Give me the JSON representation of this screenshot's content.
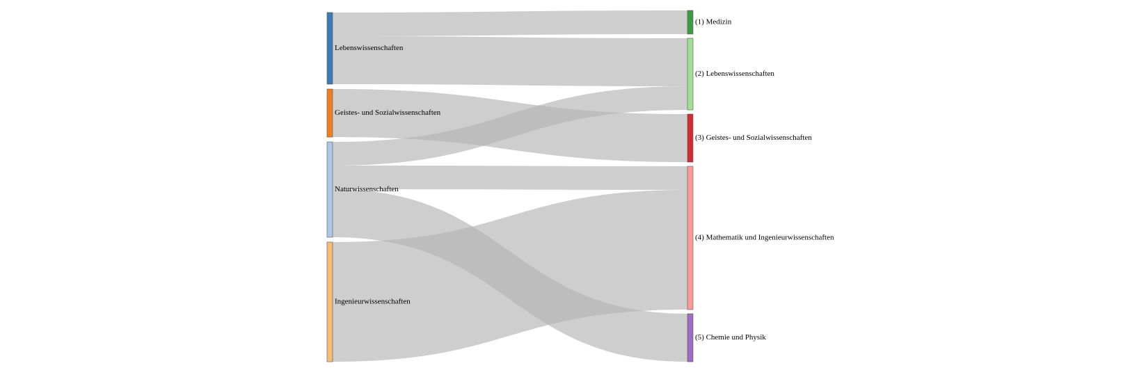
{
  "diagram": {
    "type": "sankey",
    "source_nodes": [
      {
        "id": "leben",
        "label": "Lebenswissenschaften",
        "color": "#3b7bb8"
      },
      {
        "id": "geistes",
        "label": "Geistes- und Sozialwissenschaften",
        "color": "#f07e22"
      },
      {
        "id": "natur",
        "label": "Naturwissenschaften",
        "color": "#aec6e6"
      },
      {
        "id": "ingenieur",
        "label": "Ingenieurwissenschaften",
        "color": "#f7bb7a"
      }
    ],
    "target_nodes": [
      {
        "id": "t1",
        "label": "(1) Medizin",
        "color": "#3f9b3f"
      },
      {
        "id": "t2",
        "label": "(2) Lebenswissenschaften",
        "color": "#a2df93"
      },
      {
        "id": "t3",
        "label": "(3) Geistes- und Sozialwissenschaften",
        "color": "#d52a33"
      },
      {
        "id": "t4",
        "label": "(4) Mathematik und Ingenieurwissenschaften",
        "color": "#fb9a98"
      },
      {
        "id": "t5",
        "label": "(5) Chemie und Physik",
        "color": "#9e6cc0"
      }
    ],
    "links": [
      {
        "source": "leben",
        "target": "t1",
        "value": 33
      },
      {
        "source": "leben",
        "target": "t2",
        "value": 67
      },
      {
        "source": "geistes",
        "target": "t3",
        "value": 67
      },
      {
        "source": "natur",
        "target": "t2",
        "value": 33
      },
      {
        "source": "natur",
        "target": "t4",
        "value": 33
      },
      {
        "source": "natur",
        "target": "t5",
        "value": 67
      },
      {
        "source": "ingenieur",
        "target": "t4",
        "value": 167
      }
    ]
  }
}
